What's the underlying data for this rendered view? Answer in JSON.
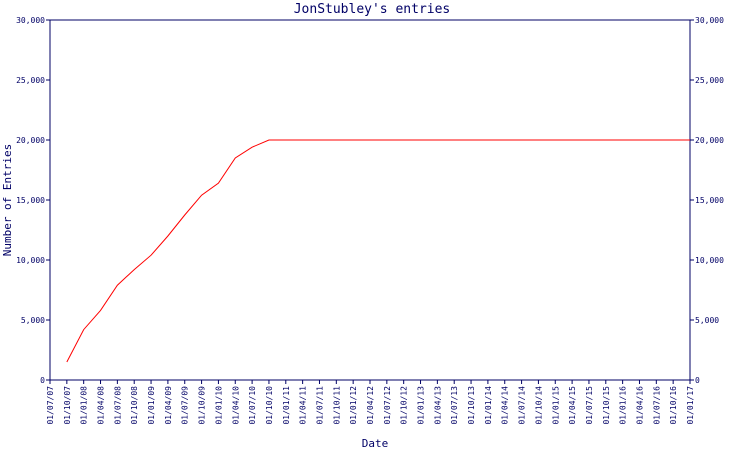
{
  "chart_data": {
    "type": "line",
    "title": "JonStubley's entries",
    "x_label": "Date",
    "y_label": "Number of Entries",
    "categories": [
      "01/07/07",
      "01/10/07",
      "01/01/08",
      "01/04/08",
      "01/07/08",
      "01/10/08",
      "01/01/09",
      "01/04/09",
      "01/07/09",
      "01/10/09",
      "01/01/10",
      "01/04/10",
      "01/07/10",
      "01/10/10",
      "01/01/11",
      "01/04/11",
      "01/07/11",
      "01/10/11",
      "01/01/12",
      "01/04/12",
      "01/07/12",
      "01/10/12",
      "01/01/13",
      "01/04/13",
      "01/07/13",
      "01/10/13",
      "01/01/14",
      "01/04/14",
      "01/07/14",
      "01/10/14",
      "01/01/15",
      "01/04/15",
      "01/07/15",
      "01/10/15",
      "01/01/16",
      "01/04/16",
      "01/07/16",
      "01/10/16",
      "01/01/17"
    ],
    "series": [
      {
        "name": "JonStubley",
        "color": "#ff0000",
        "values": [
          null,
          1500,
          4200,
          5800,
          7900,
          9200,
          10400,
          12000,
          13750,
          15400,
          16400,
          18500,
          19400,
          20000,
          20000,
          20000,
          20000,
          20000,
          20000,
          20000,
          20000,
          20000,
          20000,
          20000,
          20000,
          20000,
          20000,
          20000,
          20000,
          20000,
          20000,
          20000,
          20000,
          20000,
          20000,
          20000,
          20000,
          20000,
          20000
        ]
      }
    ],
    "ylim": [
      0,
      30000
    ],
    "yticks": [
      0,
      {
        "value": 5000,
        "label": "5,000"
      },
      {
        "value": 10000,
        "label": "10,000"
      },
      {
        "value": 15000,
        "label": "15,000"
      },
      {
        "value": 20000,
        "label": "20,000"
      },
      {
        "value": 25000,
        "label": "25,000"
      },
      {
        "value": 30000,
        "label": "30,000"
      }
    ],
    "axis_color": "#000066"
  }
}
